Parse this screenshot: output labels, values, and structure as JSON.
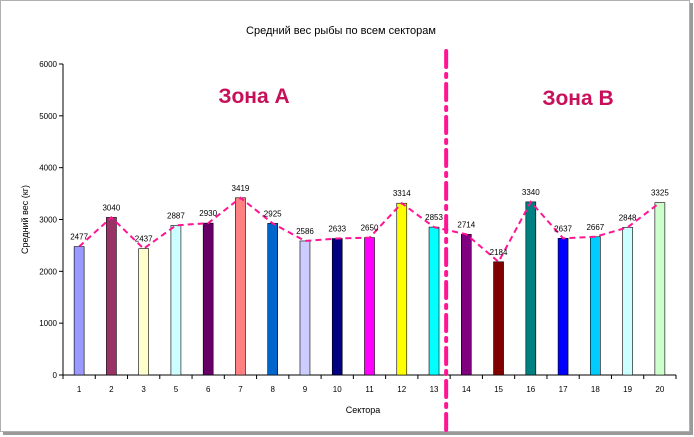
{
  "colors": {
    "line": "#ff1493",
    "divider": "#ff1493",
    "zone_text": "#c8105a",
    "bar_outline": "#000000"
  },
  "chart_data": {
    "type": "bar",
    "title": "Средний вес рыбы по всем секторам",
    "xlabel": "Сектора",
    "ylabel": "Средний вес (кг)",
    "ylim": [
      0,
      6000
    ],
    "y_ticks": [
      "0",
      "1000",
      "2000",
      "3000",
      "4000",
      "5000",
      "6000"
    ],
    "grid": false,
    "categories": [
      "1",
      "2",
      "3",
      "5",
      "6",
      "7",
      "8",
      "9",
      "10",
      "11",
      "12",
      "13",
      "14",
      "15",
      "16",
      "17",
      "18",
      "19",
      "20"
    ],
    "values": [
      2477,
      3040,
      2437,
      2887,
      2930,
      3419,
      2925,
      2586,
      2633,
      2650,
      3314,
      2853,
      2714,
      2184,
      3340,
      2637,
      2667,
      2848,
      3325
    ],
    "data_labels": [
      "2477",
      "3040",
      "2437",
      "2887",
      "2930",
      "3419",
      "2925",
      "2586",
      "2633",
      "2650",
      "3314",
      "2853",
      "2714",
      "2184",
      "3340",
      "2637",
      "2667",
      "2848",
      "3325"
    ],
    "bar_colors": [
      "#9999ff",
      "#993366",
      "#ffffcc",
      "#ccffff",
      "#660066",
      "#ff8080",
      "#0066cc",
      "#ccccff",
      "#000080",
      "#ff00ff",
      "#ffff00",
      "#00ffff",
      "#800080",
      "#800000",
      "#008080",
      "#0000ff",
      "#00ccff",
      "#ccffff",
      "#ccffcc"
    ],
    "overlay": {
      "style": "dashed line",
      "color": "#ff1493"
    },
    "zones": [
      {
        "label": "Зона А",
        "from_category_index": 0,
        "to_category_index": 11
      },
      {
        "label": "Зона В",
        "from_category_index": 12,
        "to_category_index": 18
      }
    ]
  }
}
